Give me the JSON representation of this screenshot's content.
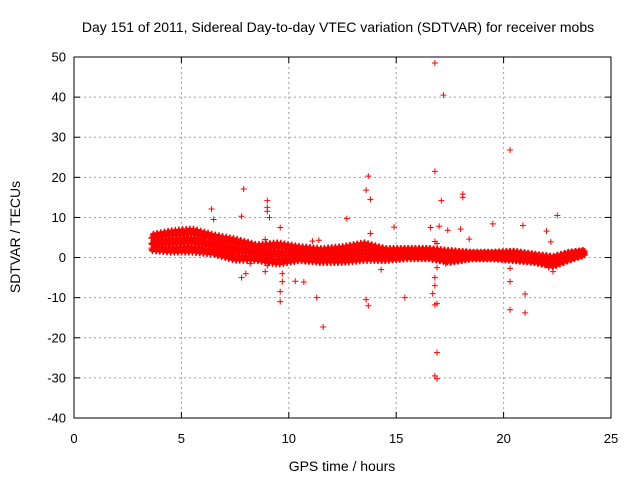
{
  "chart_data": {
    "type": "scatter",
    "title": "Day 151 of 2011, Sidereal Day-to-day VTEC variation (SDTVAR) for receiver mobs",
    "xlabel": "GPS time / hours",
    "ylabel": "SDTVAR / TECUs",
    "xlim": [
      0,
      25
    ],
    "ylim": [
      -40,
      50
    ],
    "xticks": [
      0,
      5,
      10,
      15,
      20,
      25
    ],
    "yticks": [
      -40,
      -30,
      -20,
      -10,
      0,
      10,
      20,
      30,
      40,
      50
    ],
    "grid": true,
    "marker": "plus",
    "color": "#ff0000",
    "series": [
      {
        "name": "SDTVAR",
        "band": [
          {
            "x": 3.6,
            "low": 1.5,
            "high": 6.0
          },
          {
            "x": 4.5,
            "low": 1.0,
            "high": 7.0
          },
          {
            "x": 5.5,
            "low": 1.0,
            "high": 7.5
          },
          {
            "x": 6.5,
            "low": 0.5,
            "high": 6.0
          },
          {
            "x": 7.5,
            "low": -1.0,
            "high": 5.0
          },
          {
            "x": 8.5,
            "low": -1.0,
            "high": 3.5
          },
          {
            "x": 9.5,
            "low": -2.0,
            "high": 4.0
          },
          {
            "x": 10.5,
            "low": -1.0,
            "high": 3.0
          },
          {
            "x": 11.5,
            "low": -1.5,
            "high": 2.5
          },
          {
            "x": 12.5,
            "low": -1.5,
            "high": 3.0
          },
          {
            "x": 13.5,
            "low": -1.0,
            "high": 4.0
          },
          {
            "x": 14.5,
            "low": -1.0,
            "high": 2.5
          },
          {
            "x": 15.5,
            "low": -0.5,
            "high": 2.5
          },
          {
            "x": 16.5,
            "low": -0.5,
            "high": 2.5
          },
          {
            "x": 17.5,
            "low": -1.5,
            "high": 2.0
          },
          {
            "x": 18.5,
            "low": -0.5,
            "high": 1.5
          },
          {
            "x": 19.5,
            "low": -0.5,
            "high": 1.5
          },
          {
            "x": 20.5,
            "low": -1.0,
            "high": 1.8
          },
          {
            "x": 21.5,
            "low": -1.5,
            "high": 1.0
          },
          {
            "x": 22.3,
            "low": -2.5,
            "high": 0.5
          },
          {
            "x": 23.0,
            "low": -1.0,
            "high": 1.5
          },
          {
            "x": 23.8,
            "low": 0.5,
            "high": 2.0
          }
        ],
        "outliers": [
          [
            16.8,
            48.5
          ],
          [
            17.2,
            40.5
          ],
          [
            20.3,
            26.8
          ],
          [
            16.8,
            21.5
          ],
          [
            13.7,
            20.3
          ],
          [
            7.9,
            17.1
          ],
          [
            13.6,
            16.8
          ],
          [
            13.8,
            14.5
          ],
          [
            9.0,
            14.2
          ],
          [
            18.1,
            15.8
          ],
          [
            18.1,
            15.0
          ],
          [
            17.1,
            14.2
          ],
          [
            9.0,
            12.5
          ],
          [
            6.4,
            12.1
          ],
          [
            9.0,
            11.5
          ],
          [
            22.5,
            10.5
          ],
          [
            12.7,
            9.7
          ],
          [
            6.5,
            9.5
          ],
          [
            7.8,
            10.3
          ],
          [
            9.1,
            10.0
          ],
          [
            19.5,
            8.4
          ],
          [
            20.9,
            8.0
          ],
          [
            17.0,
            7.8
          ],
          [
            16.6,
            7.5
          ],
          [
            14.9,
            7.6
          ],
          [
            9.6,
            7.5
          ],
          [
            17.4,
            6.8
          ],
          [
            18.0,
            7.1
          ],
          [
            22.0,
            6.6
          ],
          [
            18.4,
            4.6
          ],
          [
            13.8,
            6.0
          ],
          [
            8.9,
            4.5
          ],
          [
            16.8,
            4.0
          ],
          [
            16.9,
            3.5
          ],
          [
            11.1,
            4.1
          ],
          [
            11.4,
            4.3
          ],
          [
            22.2,
            3.9
          ],
          [
            8.2,
            -1.5
          ],
          [
            7.8,
            -5.0
          ],
          [
            9.0,
            -2.0
          ],
          [
            8.9,
            -3.5
          ],
          [
            9.7,
            -4.0
          ],
          [
            10.3,
            -5.9
          ],
          [
            10.7,
            -6.1
          ],
          [
            11.3,
            -10.0
          ],
          [
            11.6,
            -17.3
          ],
          [
            9.6,
            -8.5
          ],
          [
            9.6,
            -11.0
          ],
          [
            13.7,
            -12.0
          ],
          [
            13.6,
            -10.5
          ],
          [
            14.3,
            -3.0
          ],
          [
            15.4,
            -10.0
          ],
          [
            16.9,
            -2.5
          ],
          [
            16.8,
            -5.0
          ],
          [
            16.8,
            -7.0
          ],
          [
            16.7,
            -9.0
          ],
          [
            16.8,
            -11.8
          ],
          [
            16.9,
            -11.5
          ],
          [
            16.9,
            -23.7
          ],
          [
            16.8,
            -29.5
          ],
          [
            16.9,
            -30.2
          ],
          [
            17.3,
            -1.5
          ],
          [
            20.3,
            -2.7
          ],
          [
            20.3,
            -6.0
          ],
          [
            20.3,
            -13.0
          ],
          [
            21.0,
            -9.1
          ],
          [
            21.0,
            -13.8
          ],
          [
            22.0,
            -1.5
          ],
          [
            22.1,
            -2.5
          ],
          [
            22.3,
            -3.5
          ],
          [
            9.8,
            1.0
          ],
          [
            9.7,
            -6.0
          ],
          [
            8.0,
            -4.0
          ]
        ]
      }
    ]
  }
}
